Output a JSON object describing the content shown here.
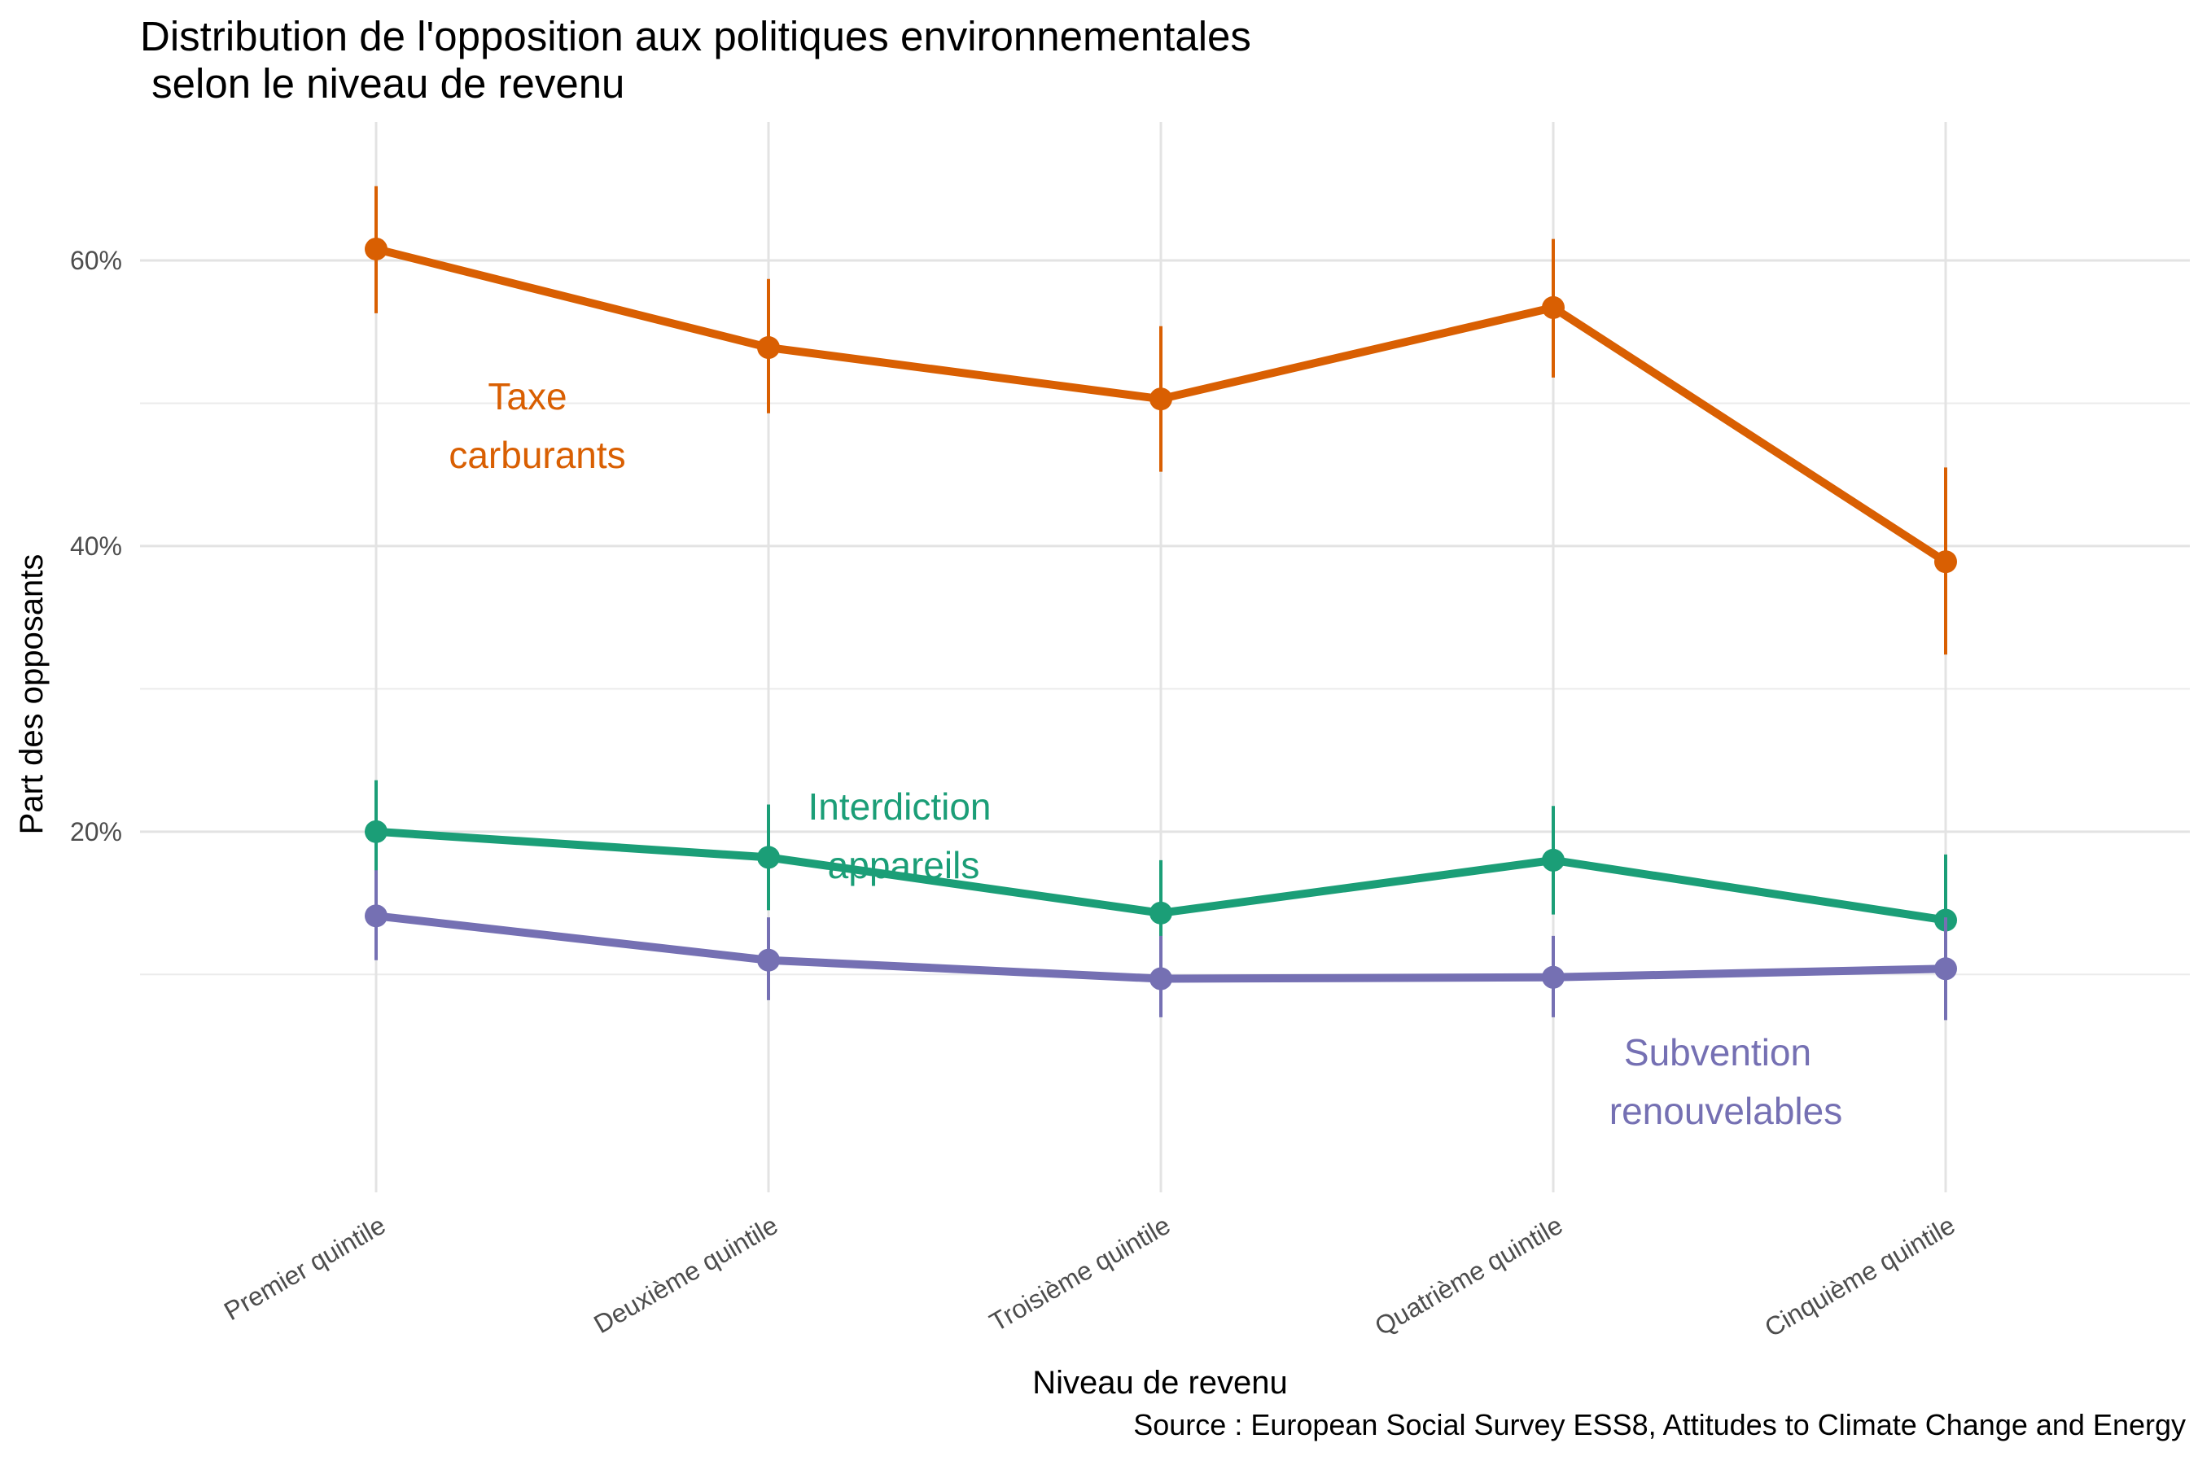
{
  "chart_data": {
    "type": "line",
    "title_line1": "Distribution de l'opposition aux politiques environnementales",
    "title_line2": " selon le niveau de revenu",
    "xlabel": "Niveau de revenu",
    "ylabel": "Part des opposants",
    "caption": "Source : European Social Survey ESS8, Attitudes to Climate Change and Energy",
    "categories": [
      "Premier quintile",
      "Deuxième quintile",
      "Troisième quintile",
      "Quatrième quintile",
      "Cinquième quintile"
    ],
    "ylim": [
      0.05,
      0.67
    ],
    "y_ticks": [
      0.2,
      0.4,
      0.6
    ],
    "y_tick_labels": [
      "20%",
      "40%",
      "60%"
    ],
    "y_minor_ticks": [
      0.1,
      0.3,
      0.5
    ],
    "grid": true,
    "series": [
      {
        "name": "Taxe carburants",
        "label_lines": [
          "Taxe",
          "carburants"
        ],
        "color": "#D95F02",
        "values": [
          0.608,
          0.539,
          0.503,
          0.567,
          0.389
        ],
        "lower": [
          0.563,
          0.493,
          0.452,
          0.518,
          0.324
        ],
        "upper": [
          0.652,
          0.587,
          0.554,
          0.615,
          0.455
        ]
      },
      {
        "name": "Interdiction appareils",
        "label_lines": [
          "Interdiction",
          "appareils"
        ],
        "color": "#1B9E77",
        "values": [
          0.2,
          0.182,
          0.143,
          0.18,
          0.138
        ],
        "lower": [
          0.164,
          0.145,
          0.107,
          0.142,
          0.098
        ],
        "upper": [
          0.236,
          0.219,
          0.18,
          0.218,
          0.184
        ]
      },
      {
        "name": "Subvention renouvelables",
        "label_lines": [
          "Subvention",
          "renouvelables"
        ],
        "color": "#7570B3",
        "values": [
          0.141,
          0.11,
          0.097,
          0.098,
          0.104
        ],
        "lower": [
          0.11,
          0.082,
          0.07,
          0.07,
          0.068
        ],
        "upper": [
          0.173,
          0.14,
          0.127,
          0.127,
          0.14
        ]
      }
    ]
  }
}
